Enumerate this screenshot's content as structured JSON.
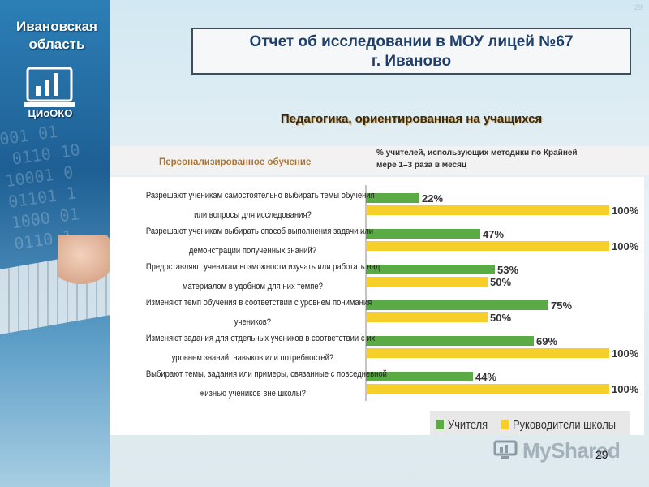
{
  "slide": {
    "region": "Ивановская область",
    "logo_text": "ЦИоОКО",
    "page_top": "29",
    "page_bottom": "29",
    "report_title_line1": "Отчет об исследовании в МОУ лицей №67",
    "report_title_line2": "г. Иваново",
    "subtitle": "Педагогика, ориентированная на учащихся",
    "column_title": "Персонализированное обучение",
    "column_note": "% учителей, использующих методики по Крайней мере 1–3 раза в месяц",
    "watermark": "MyShared",
    "icons": [
      "region-logo-icon",
      "myshared-logo-icon"
    ]
  },
  "chart_data": {
    "type": "bar",
    "orientation": "horizontal",
    "categories": [
      [
        "Разрешают ученикам самостоятельно выбирать темы обучения",
        "или вопросы для исследования?"
      ],
      [
        "Разрешают ученикам выбирать способ выполнения задачи или",
        "демонстрации полученных знаний?"
      ],
      [
        "Предоставляют ученикам возможности изучать или работать над",
        "материалом в удобном для них темпе?"
      ],
      [
        "Изменяют темп обучения в соответствии с уровнем понимания",
        "учеников?"
      ],
      [
        "Изменяют задания для отдельных учеников в соответствии с их",
        "уровнем знаний, навыков или потребностей?"
      ],
      [
        "Выбирают темы, задания или примеры, связанные с повседневной",
        "жизнью учеников вне школы?"
      ]
    ],
    "series": [
      {
        "name": "Учителя",
        "color": "#5aaa46",
        "values": [
          22,
          47,
          53,
          75,
          69,
          44
        ]
      },
      {
        "name": "Руководители школы",
        "color": "#f7cf2b",
        "values": [
          100,
          100,
          50,
          50,
          100,
          100
        ]
      }
    ],
    "data_labels": {
      "Учителя": [
        "22%",
        "47%",
        "53%",
        "75%",
        "69%",
        "44%"
      ],
      "Руководители школы": [
        "100%",
        "100%",
        "50%",
        "50%",
        "100%",
        "100%"
      ]
    },
    "xlim": [
      0,
      100
    ],
    "grid": false,
    "legend_position": "bottom-right"
  }
}
